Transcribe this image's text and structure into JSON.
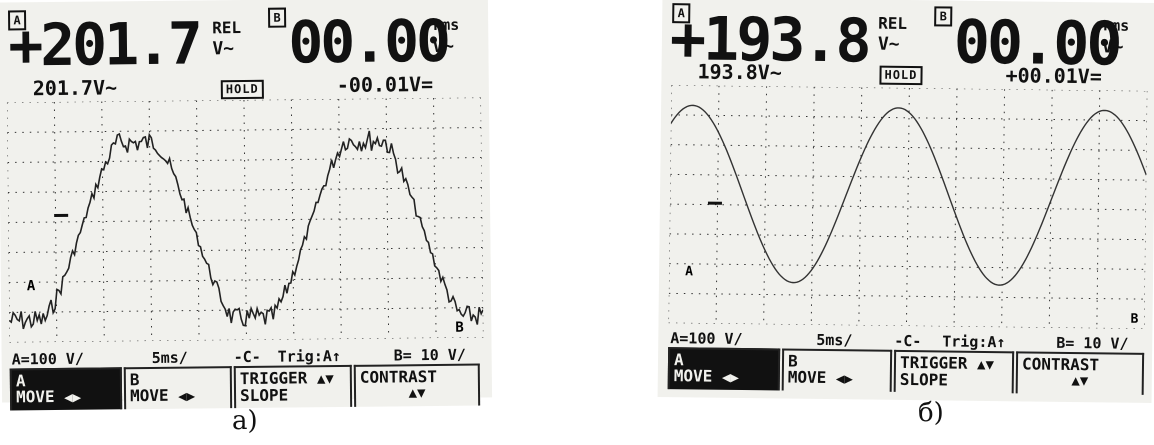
{
  "panels": [
    {
      "caption": "а)",
      "channel_a_label": "A",
      "channel_b_label": "B",
      "main_value": "+201.7",
      "main_unit": "V~",
      "main_tag": "REL",
      "b_value": "00.00",
      "b_unit": "V~",
      "b_tag": "rms",
      "sub_value": "201.7V~",
      "hold_label": "HOLD",
      "b_sub_value": "-00.01V=",
      "trace_marker": "A",
      "trace_marker_b": "B",
      "status": {
        "a_scale": "A=100 V/",
        "timebase": "5ms/",
        "trigger_icon": "-C-",
        "trigger": "Trig:A↑",
        "b_scale": "B= 10 V/"
      },
      "softkeys": [
        {
          "line1": "A",
          "line2": "MOVE",
          "arrow": "◀▶"
        },
        {
          "line1": "B",
          "line2": "MOVE",
          "arrow": "◀▶"
        },
        {
          "line1": "TRIGGER",
          "line2": "SLOPE",
          "arrow": "▲▼"
        },
        {
          "line1": "CONTRAST",
          "line2": "",
          "arrow": "▲▼"
        }
      ]
    },
    {
      "caption": "б)",
      "channel_a_label": "A",
      "channel_b_label": "B",
      "main_value": "+193.8",
      "main_unit": "V~",
      "main_tag": "REL",
      "b_value": "00.00",
      "b_unit": "V~",
      "b_tag": "rms",
      "sub_value": "193.8V~",
      "hold_label": "HOLD",
      "b_sub_value": "+00.01V=",
      "trace_marker": "A",
      "trace_marker_b": "B",
      "status": {
        "a_scale": "A=100 V/",
        "timebase": "5ms/",
        "trigger_icon": "-C-",
        "trigger": "Trig:A↑",
        "b_scale": "B= 10 V/"
      },
      "softkeys": [
        {
          "line1": "A",
          "line2": "MOVE",
          "arrow": "◀▶"
        },
        {
          "line1": "B",
          "line2": "MOVE",
          "arrow": "◀▶"
        },
        {
          "line1": "TRIGGER",
          "line2": "SLOPE",
          "arrow": "▲▼"
        },
        {
          "line1": "CONTRAST",
          "line2": "",
          "arrow": "▲▼"
        }
      ]
    }
  ],
  "colors": {
    "ink": "#111111",
    "screen": "#f1f1ed",
    "paper": "#ffffff"
  }
}
